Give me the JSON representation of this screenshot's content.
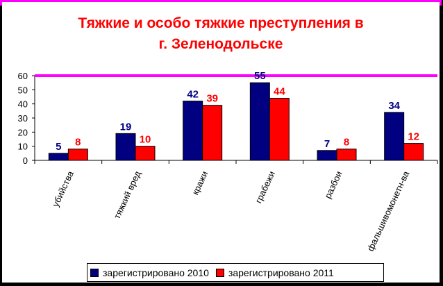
{
  "chart_data": {
    "type": "bar",
    "title_line1": "Тяжкие и особо тяжкие преступления в",
    "title_line2": "г. Зеленодольске",
    "categories": [
      "убийства",
      "тяжкий вред",
      "кражи",
      "грабежи",
      "разбои",
      "фальшивомонетн-ва"
    ],
    "series": [
      {
        "name": "зарегистрировано 2010",
        "values": [
          5,
          19,
          42,
          55,
          7,
          34
        ],
        "color": "#000080",
        "label_color": "#000080"
      },
      {
        "name": "зарегистрировано 2011",
        "values": [
          8,
          10,
          39,
          44,
          8,
          12
        ],
        "color": "#ff0000",
        "label_color": "#ff0000"
      }
    ],
    "ylim": [
      0,
      60
    ],
    "yticks": [
      0,
      10,
      20,
      30,
      40,
      50,
      60
    ],
    "accent_line_color": "#ff00ff",
    "legend_position": "bottom"
  }
}
